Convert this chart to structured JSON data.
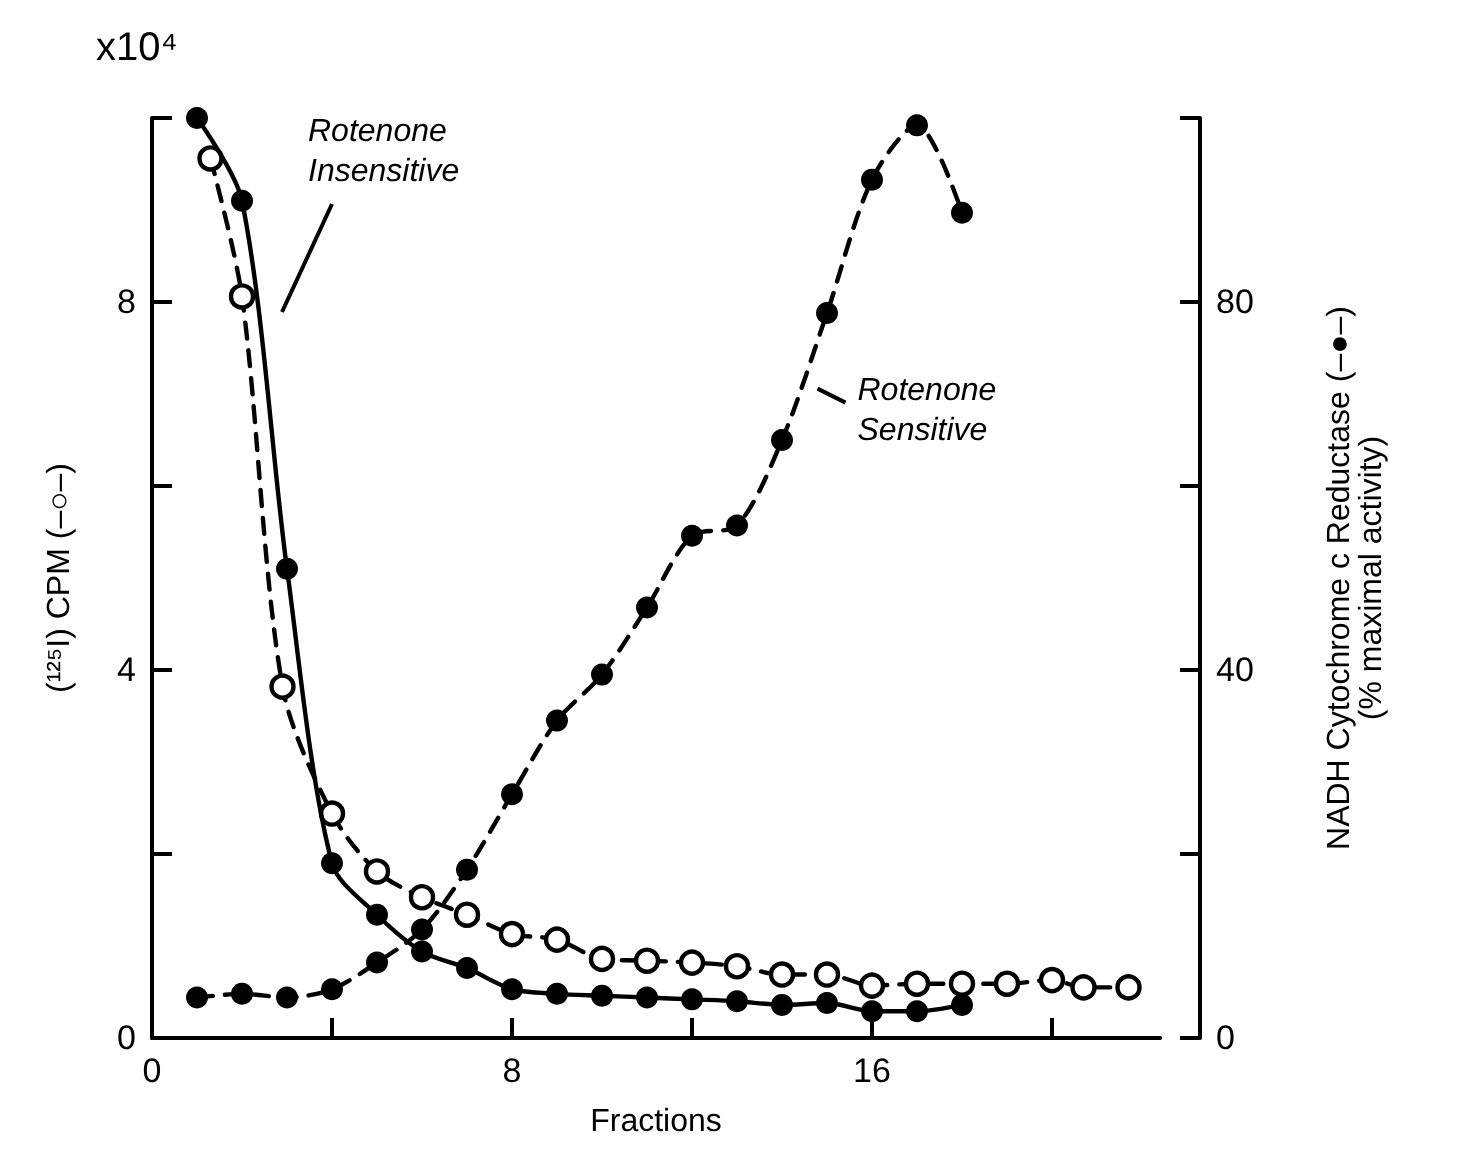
{
  "chart_data": {
    "type": "line",
    "xlabel": "Fractions",
    "ylabel": "(¹²⁵I) CPM (–○–)",
    "y2label": "NADH Cytochrome c Reductase (–●–)\n(% maximal activity)",
    "xlim": [
      0,
      22.4
    ],
    "xticks": [
      0,
      {
        "value": 4,
        "label": null
      },
      8,
      {
        "value": 12,
        "label": null
      },
      16,
      {
        "value": 20,
        "label": null
      }
    ],
    "ylim": [
      0,
      10
    ],
    "yticks": [
      0,
      {
        "value": 2,
        "label": null
      },
      4,
      {
        "value": 6,
        "label": null
      },
      8,
      {
        "value": 10,
        "label": null
      }
    ],
    "y2lim": [
      0,
      100
    ],
    "y2ticks": [
      0,
      {
        "value": 20,
        "label": null
      },
      40,
      {
        "value": 60,
        "label": null
      },
      80,
      {
        "value": 100,
        "label": null
      }
    ],
    "grid": false,
    "marker": "circle",
    "series": [
      {
        "color": "#000000",
        "axis": "y",
        "line_style": "dashed",
        "x": [
          1.3,
          2,
          2.9,
          4,
          5,
          6,
          7,
          8,
          9,
          10,
          11,
          12,
          13,
          14,
          15,
          16,
          17,
          18,
          19,
          20,
          20.7,
          21.7
        ],
        "values": [
          9.56,
          8.06,
          3.82,
          2.44,
          1.81,
          1.53,
          1.34,
          1.13,
          1.07,
          0.86,
          0.84,
          0.82,
          0.78,
          0.69,
          0.69,
          0.57,
          0.59,
          0.59,
          0.59,
          0.63,
          0.55,
          0.55
        ]
      },
      {
        "color": "#000000",
        "axis": "y2",
        "line_style": "solid",
        "x": [
          1,
          2,
          3,
          4,
          5,
          6,
          7,
          8,
          9,
          10,
          11,
          12,
          13,
          14,
          15,
          16,
          17,
          18
        ],
        "values": [
          100,
          91,
          51,
          19,
          13.4,
          9.4,
          7.6,
          5.3,
          4.8,
          4.6,
          4.4,
          4.2,
          4,
          3.6,
          3.8,
          2.9,
          2.9,
          3.6
        ]
      },
      {
        "color": "#000000",
        "axis": "y2",
        "line_style": "dashed",
        "x": [
          1,
          2,
          3,
          4,
          5,
          6,
          7,
          8,
          9,
          10,
          11,
          12,
          13,
          14,
          15,
          16,
          17,
          18
        ],
        "values": [
          4.4,
          4.8,
          4.4,
          5.3,
          8.2,
          11.8,
          18.3,
          26.5,
          34.5,
          39.5,
          46.8,
          54.6,
          55.7,
          65,
          78.8,
          93.3,
          99.2,
          89.7
        ]
      }
    ],
    "annotations": [
      "x10⁴",
      "Rotenone Insensitive",
      {
        "text": "Rotenone Sensitive",
        "x": 14.7,
        "y": 7.08
      }
    ]
  }
}
